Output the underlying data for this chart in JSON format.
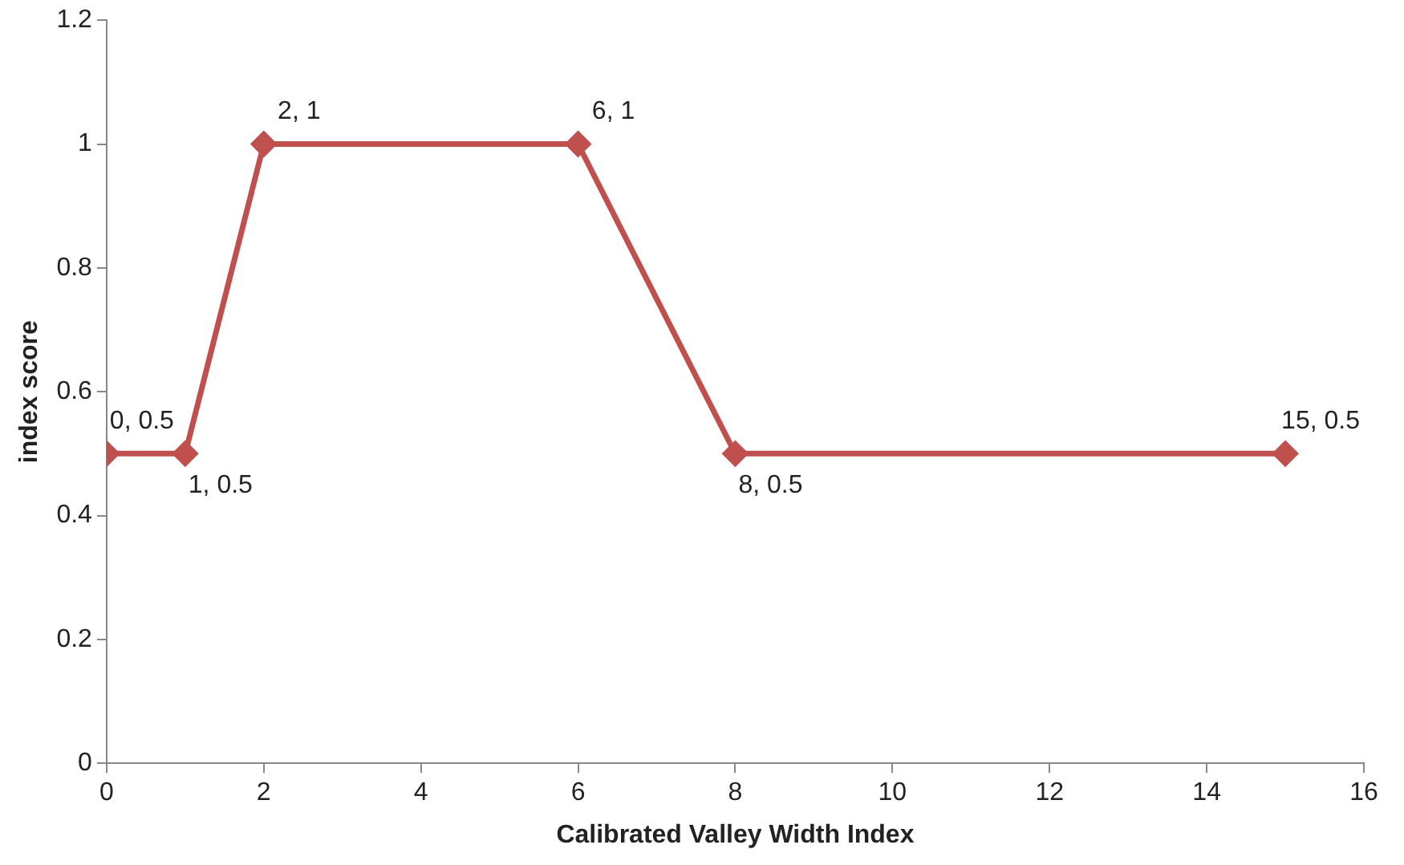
{
  "chart_data": {
    "type": "line",
    "xlabel": "Calibrated Valley Width Index",
    "ylabel": "index score",
    "x": [
      0,
      1,
      2,
      6,
      8,
      15
    ],
    "series": [
      {
        "color": "#c0504d",
        "values": [
          0.5,
          0.5,
          1,
          1,
          0.5,
          0.5
        ],
        "value_labels": [
          "0, 0.5",
          "1, 0.5",
          "2, 1",
          "6, 1",
          "8, 0.5",
          "15, 0.5"
        ]
      }
    ],
    "xlim": [
      0,
      16
    ],
    "xticks": [
      0,
      2,
      4,
      6,
      8,
      10,
      12,
      14,
      16
    ],
    "ylim": [
      0,
      1.2
    ],
    "yticks": [
      0,
      0.2,
      0.4,
      0.6,
      0.8,
      1,
      1.2
    ],
    "grid": false,
    "legend": false,
    "marker": "diamond",
    "line_style": "solid"
  }
}
